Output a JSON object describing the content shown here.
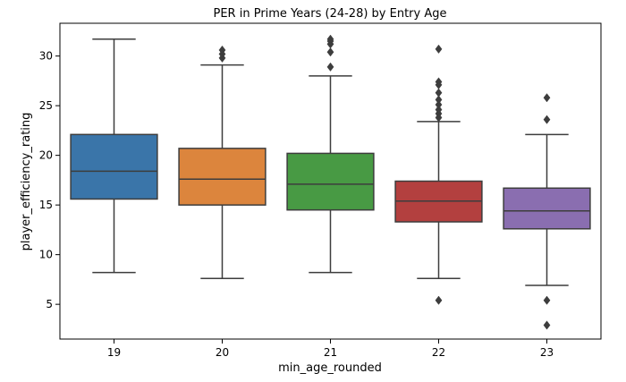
{
  "chart_data": {
    "type": "box",
    "title": "PER in Prime Years (24-28) by Entry Age",
    "xlabel": "min_age_rounded",
    "ylabel": "player_efficiency_rating",
    "ylim": [
      1.5,
      33.3
    ],
    "yticks": [
      5,
      10,
      15,
      20,
      25,
      30
    ],
    "grid": false,
    "series": [
      {
        "name": "19",
        "color": "#3a75a9",
        "whisker_low": 8.2,
        "q1": 15.6,
        "median": 18.4,
        "q3": 22.1,
        "whisker_high": 31.7,
        "outliers": []
      },
      {
        "name": "20",
        "color": "#dc853d",
        "whisker_low": 7.6,
        "q1": 15.0,
        "median": 17.6,
        "q3": 20.7,
        "whisker_high": 29.1,
        "outliers": [
          29.8,
          30.2,
          30.6
        ]
      },
      {
        "name": "21",
        "color": "#489a44",
        "whisker_low": 8.2,
        "q1": 14.5,
        "median": 17.1,
        "q3": 20.2,
        "whisker_high": 28.0,
        "outliers": [
          28.9,
          30.4,
          31.2,
          31.5,
          31.7
        ]
      },
      {
        "name": "22",
        "color": "#b3403f",
        "whisker_low": 7.6,
        "q1": 13.3,
        "median": 15.4,
        "q3": 17.4,
        "whisker_high": 23.4,
        "outliers": [
          5.4,
          23.8,
          24.2,
          24.6,
          25.1,
          25.6,
          26.3,
          27.1,
          27.4,
          30.7
        ]
      },
      {
        "name": "23",
        "color": "#8a6eb0",
        "whisker_low": 6.9,
        "q1": 12.6,
        "median": 14.4,
        "q3": 16.7,
        "whisker_high": 22.1,
        "outliers": [
          2.9,
          5.4,
          23.6,
          25.8
        ]
      }
    ]
  }
}
